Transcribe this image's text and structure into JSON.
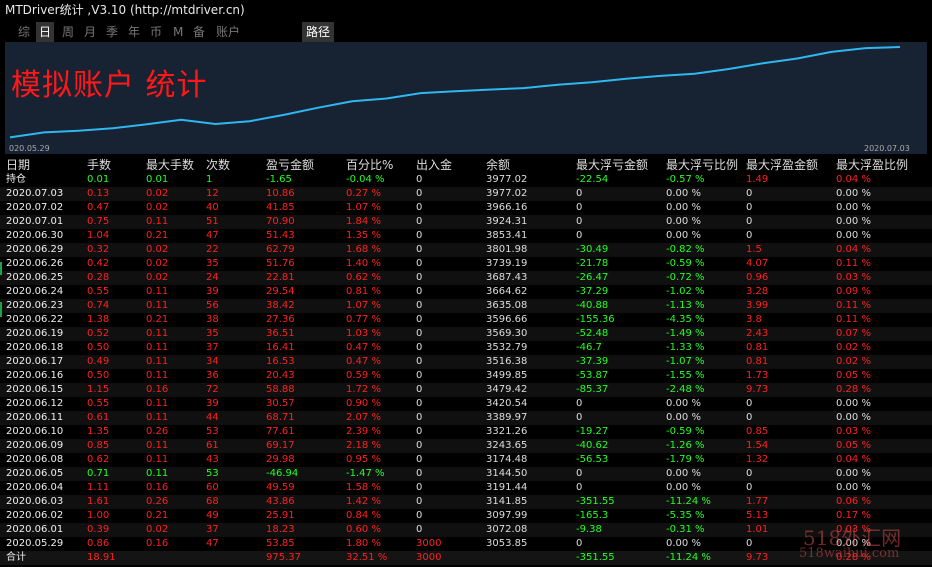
{
  "window": {
    "title": "MTDriver统计 ,V3.10 (http://mtdriver.cn)"
  },
  "tabs": [
    "综",
    "日",
    "周",
    "月",
    "季",
    "年",
    "币",
    "M",
    "备",
    "账户"
  ],
  "active_tab": "日",
  "route_button": "路径",
  "chart": {
    "title": "模拟账户 统计",
    "start_date": "020.05.29",
    "end_date": "2020.07.03",
    "line_color": "#2fb7f0",
    "background": "#172233"
  },
  "table": {
    "headers": [
      "日期",
      "手数",
      "最大手数",
      "次数",
      "盈亏金额",
      "百分比%",
      "出入金",
      "余额",
      "最大浮亏金额",
      "最大浮亏比例",
      "最大浮盈金额",
      "最大浮盈比例"
    ],
    "holding": [
      "持仓",
      "0.01",
      "0.01",
      "1",
      "-1.65",
      "-0.04 %",
      "0",
      "3977.02",
      "-22.54",
      "-0.57 %",
      "1.49",
      "0.04 %"
    ],
    "rows": [
      [
        "2020.07.03",
        "0.13",
        "0.02",
        "12",
        "10.86",
        "0.27 %",
        "0",
        "3977.02",
        "0",
        "0.00 %",
        "0",
        "0.00 %"
      ],
      [
        "2020.07.02",
        "0.47",
        "0.02",
        "40",
        "41.85",
        "1.07 %",
        "0",
        "3966.16",
        "0",
        "0.00 %",
        "0",
        "0.00 %"
      ],
      [
        "2020.07.01",
        "0.75",
        "0.11",
        "51",
        "70.90",
        "1.84 %",
        "0",
        "3924.31",
        "0",
        "0.00 %",
        "0",
        "0.00 %"
      ],
      [
        "2020.06.30",
        "1.04",
        "0.21",
        "47",
        "51.43",
        "1.35 %",
        "0",
        "3853.41",
        "0",
        "0.00 %",
        "0",
        "0.00 %"
      ],
      [
        "2020.06.29",
        "0.32",
        "0.02",
        "22",
        "62.79",
        "1.68 %",
        "0",
        "3801.98",
        "-30.49",
        "-0.82 %",
        "1.5",
        "0.04 %"
      ],
      [
        "2020.06.26",
        "0.42",
        "0.02",
        "35",
        "51.76",
        "1.40 %",
        "0",
        "3739.19",
        "-21.78",
        "-0.59 %",
        "4.07",
        "0.11 %"
      ],
      [
        "2020.06.25",
        "0.28",
        "0.02",
        "24",
        "22.81",
        "0.62 %",
        "0",
        "3687.43",
        "-26.47",
        "-0.72 %",
        "0.96",
        "0.03 %"
      ],
      [
        "2020.06.24",
        "0.55",
        "0.11",
        "39",
        "29.54",
        "0.81 %",
        "0",
        "3664.62",
        "-37.29",
        "-1.02 %",
        "3.28",
        "0.09 %"
      ],
      [
        "2020.06.23",
        "0.74",
        "0.11",
        "56",
        "38.42",
        "1.07 %",
        "0",
        "3635.08",
        "-40.88",
        "-1.13 %",
        "3.99",
        "0.11 %"
      ],
      [
        "2020.06.22",
        "1.38",
        "0.21",
        "38",
        "27.36",
        "0.77 %",
        "0",
        "3596.66",
        "-155.36",
        "-4.35 %",
        "3.8",
        "0.11 %"
      ],
      [
        "2020.06.19",
        "0.52",
        "0.11",
        "35",
        "36.51",
        "1.03 %",
        "0",
        "3569.30",
        "-52.48",
        "-1.49 %",
        "2.43",
        "0.07 %"
      ],
      [
        "2020.06.18",
        "0.50",
        "0.11",
        "37",
        "16.41",
        "0.47 %",
        "0",
        "3532.79",
        "-46.7",
        "-1.33 %",
        "0.81",
        "0.02 %"
      ],
      [
        "2020.06.17",
        "0.49",
        "0.11",
        "34",
        "16.53",
        "0.47 %",
        "0",
        "3516.38",
        "-37.39",
        "-1.07 %",
        "0.81",
        "0.02 %"
      ],
      [
        "2020.06.16",
        "0.50",
        "0.11",
        "36",
        "20.43",
        "0.59 %",
        "0",
        "3499.85",
        "-53.87",
        "-1.55 %",
        "1.73",
        "0.05 %"
      ],
      [
        "2020.06.15",
        "1.15",
        "0.16",
        "72",
        "58.88",
        "1.72 %",
        "0",
        "3479.42",
        "-85.37",
        "-2.48 %",
        "9.73",
        "0.28 %"
      ],
      [
        "2020.06.12",
        "0.55",
        "0.11",
        "39",
        "30.57",
        "0.90 %",
        "0",
        "3420.54",
        "0",
        "0.00 %",
        "0",
        "0.00 %"
      ],
      [
        "2020.06.11",
        "0.61",
        "0.11",
        "44",
        "68.71",
        "2.07 %",
        "0",
        "3389.97",
        "0",
        "0.00 %",
        "0",
        "0.00 %"
      ],
      [
        "2020.06.10",
        "1.35",
        "0.26",
        "53",
        "77.61",
        "2.39 %",
        "0",
        "3321.26",
        "-19.27",
        "-0.59 %",
        "0.85",
        "0.03 %"
      ],
      [
        "2020.06.09",
        "0.85",
        "0.11",
        "61",
        "69.17",
        "2.18 %",
        "0",
        "3243.65",
        "-40.62",
        "-1.26 %",
        "1.54",
        "0.05 %"
      ],
      [
        "2020.06.08",
        "0.62",
        "0.11",
        "43",
        "29.98",
        "0.95 %",
        "0",
        "3174.48",
        "-56.53",
        "-1.79 %",
        "1.32",
        "0.04 %"
      ],
      [
        "2020.06.05",
        "0.71",
        "0.11",
        "53",
        "-46.94",
        "-1.47 %",
        "0",
        "3144.50",
        "0",
        "0.00 %",
        "0",
        "0.00 %"
      ],
      [
        "2020.06.04",
        "1.11",
        "0.16",
        "60",
        "49.59",
        "1.58 %",
        "0",
        "3191.44",
        "0",
        "0.00 %",
        "0",
        "0.00 %"
      ],
      [
        "2020.06.03",
        "1.61",
        "0.26",
        "68",
        "43.86",
        "1.42 %",
        "0",
        "3141.85",
        "-351.55",
        "-11.24 %",
        "1.77",
        "0.06 %"
      ],
      [
        "2020.06.02",
        "1.00",
        "0.21",
        "49",
        "25.91",
        "0.84 %",
        "0",
        "3097.99",
        "-165.3",
        "-5.35 %",
        "5.13",
        "0.17 %"
      ],
      [
        "2020.06.01",
        "0.39",
        "0.02",
        "37",
        "18.23",
        "0.60 %",
        "0",
        "3072.08",
        "-9.38",
        "-0.31 %",
        "1.01",
        "0.03 %"
      ],
      [
        "2020.05.29",
        "0.86",
        "0.16",
        "47",
        "53.85",
        "1.80 %",
        "3000",
        "3053.85",
        "0",
        "0.00 %",
        "0",
        "0.00 %"
      ]
    ],
    "total": [
      "合计",
      "18.91",
      "",
      "",
      "975.37",
      "32.51 %",
      "3000",
      "",
      "-351.55",
      "-11.24 %",
      "9.73",
      "0.28 %"
    ]
  },
  "equity_curve": [
    3000,
    3053.85,
    3072.08,
    3097.99,
    3141.85,
    3191.44,
    3144.5,
    3174.48,
    3243.65,
    3321.26,
    3389.97,
    3420.54,
    3479.42,
    3499.85,
    3516.38,
    3532.79,
    3569.3,
    3596.66,
    3635.08,
    3664.62,
    3687.43,
    3739.19,
    3801.98,
    3853.41,
    3924.31,
    3966.16,
    3977.02
  ],
  "watermark": {
    "line1": "518外汇网",
    "line2": "518waihui.com"
  },
  "colors": {
    "positive": "#ff2020",
    "negative": "#22ff22",
    "neutral": "#dddddd"
  }
}
